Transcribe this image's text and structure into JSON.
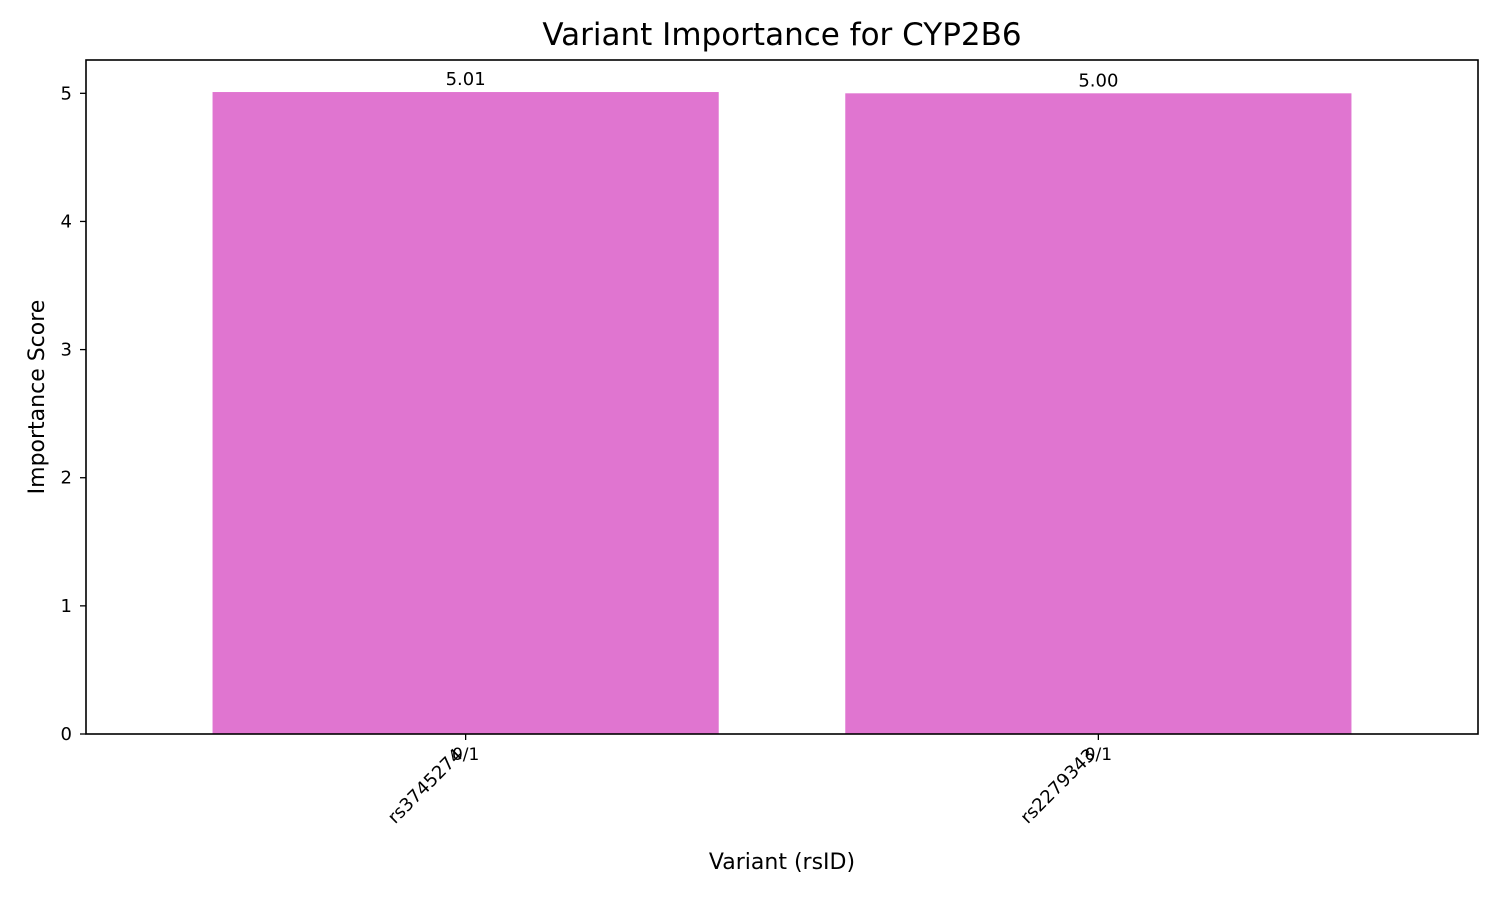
{
  "chart_data": {
    "type": "bar",
    "title": "Variant Importance for CYP2B6",
    "xlabel": "Variant (rsID)",
    "ylabel": "Importance Score",
    "categories": [
      "rs3745274",
      "rs2279343"
    ],
    "genotypes": [
      "0/1",
      "0/1"
    ],
    "values": [
      5.01,
      5.0
    ],
    "value_labels": [
      "5.01",
      "5.00"
    ],
    "yticks": [
      0,
      1,
      2,
      3,
      4,
      5
    ],
    "ylim": [
      0,
      5.26
    ],
    "bar_color": "#e075d0",
    "grid": false,
    "legend": "none"
  }
}
